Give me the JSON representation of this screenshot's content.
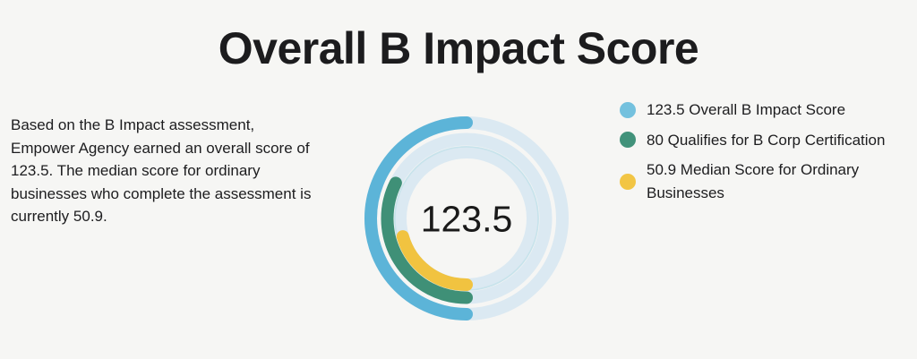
{
  "page": {
    "background_color": "#f6f6f4",
    "text_color": "#1d1d1f"
  },
  "title": "Overall B Impact Score",
  "description": "Based on the B Impact assessment,\nEmpower Agency earned an overall score of\n123.5. The median score for ordinary\nbusinesses who complete the assessment is\ncurrently 50.9.",
  "chart_data": {
    "type": "doughnut-gauge",
    "center_label": "123.5",
    "start_position": "bottom",
    "sweep_direction": "from bottom up the left side toward top",
    "value_at_half_turn": 123.5,
    "stroke_width": 14,
    "track_color": "#dbe9f2",
    "guide_circle": {
      "radius": 80,
      "color": "#c7e3eb",
      "width": 1.5
    },
    "rings": [
      {
        "name": "Overall B Impact Score",
        "value": 123.5,
        "color": "#5cb4d8",
        "radius": 107
      },
      {
        "name": "Qualifies for B Corp Certification",
        "value": 80,
        "color": "#3f9077",
        "radius": 88.5
      },
      {
        "name": "Median Score for Ordinary Businesses",
        "value": 50.9,
        "color": "#f1c340",
        "radius": 74
      }
    ]
  },
  "legend": {
    "items": [
      {
        "label": "123.5 Overall B Impact Score",
        "color": "#74c1de"
      },
      {
        "label": "80 Qualifies for B Corp Certification",
        "color": "#41927a"
      },
      {
        "label": "50.9 Median Score for Ordinary\nBusinesses",
        "color": "#f2c544"
      }
    ]
  }
}
